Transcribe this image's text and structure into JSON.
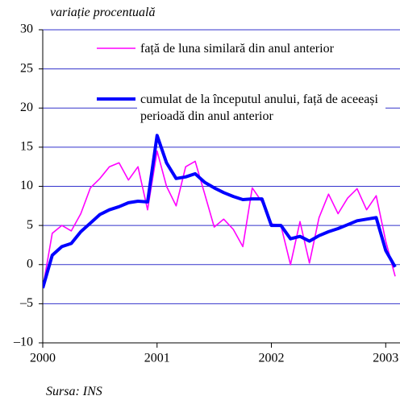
{
  "chart_data": {
    "type": "line",
    "title": "variație procentuală",
    "source": "Sursa: INS",
    "xlim": [
      2000,
      2003.125
    ],
    "xticks": [
      2000,
      2001,
      2002,
      2003
    ],
    "ylim": [
      -10,
      30
    ],
    "yticks": [
      {
        "value": -10,
        "label": "–10"
      },
      {
        "value": -5,
        "label": "–5"
      },
      0,
      5,
      10,
      15,
      20,
      25,
      30
    ],
    "grid": true,
    "x": [
      2000,
      2000.083,
      2000.167,
      2000.25,
      2000.333,
      2000.417,
      2000.5,
      2000.583,
      2000.667,
      2000.75,
      2000.833,
      2000.917,
      2001,
      2001.083,
      2001.167,
      2001.25,
      2001.333,
      2001.417,
      2001.5,
      2001.583,
      2001.667,
      2001.75,
      2001.833,
      2001.917,
      2002,
      2002.083,
      2002.167,
      2002.25,
      2002.333,
      2002.417,
      2002.5,
      2002.583,
      2002.667,
      2002.75,
      2002.833,
      2002.917,
      2003,
      2003.083
    ],
    "series": [
      {
        "name": "față de luna similară din anul anterior",
        "color": "#ff00ff",
        "values": [
          -3,
          4.0,
          5.0,
          4.3,
          6.5,
          9.8,
          11.0,
          12.5,
          13.0,
          10.8,
          12.5,
          7.0,
          14.5,
          10.0,
          7.5,
          12.5,
          13.2,
          9.0,
          4.8,
          5.8,
          4.5,
          2.3,
          9.8,
          8.0,
          5.2,
          5.0,
          0,
          5.5,
          0.2,
          6.0,
          9.0,
          6.5,
          8.5,
          9.7,
          7.0,
          8.8,
          3.0,
          -1.5
        ]
      },
      {
        "name": "cumulat de la începutul anului, față de aceeași perioadă din anul anterior",
        "color": "#0000ff",
        "values": [
          -3,
          1.2,
          2.3,
          2.7,
          4.2,
          5.3,
          6.4,
          7.0,
          7.4,
          7.9,
          8.1,
          8.0,
          16.5,
          13.0,
          11.0,
          11.2,
          11.6,
          10.5,
          9.8,
          9.2,
          8.7,
          8.3,
          8.4,
          8.4,
          5.0,
          5.0,
          3.3,
          3.6,
          3.0,
          3.7,
          4.2,
          4.6,
          5.1,
          5.6,
          5.8,
          6.0,
          1.8,
          -0.3
        ]
      }
    ]
  }
}
